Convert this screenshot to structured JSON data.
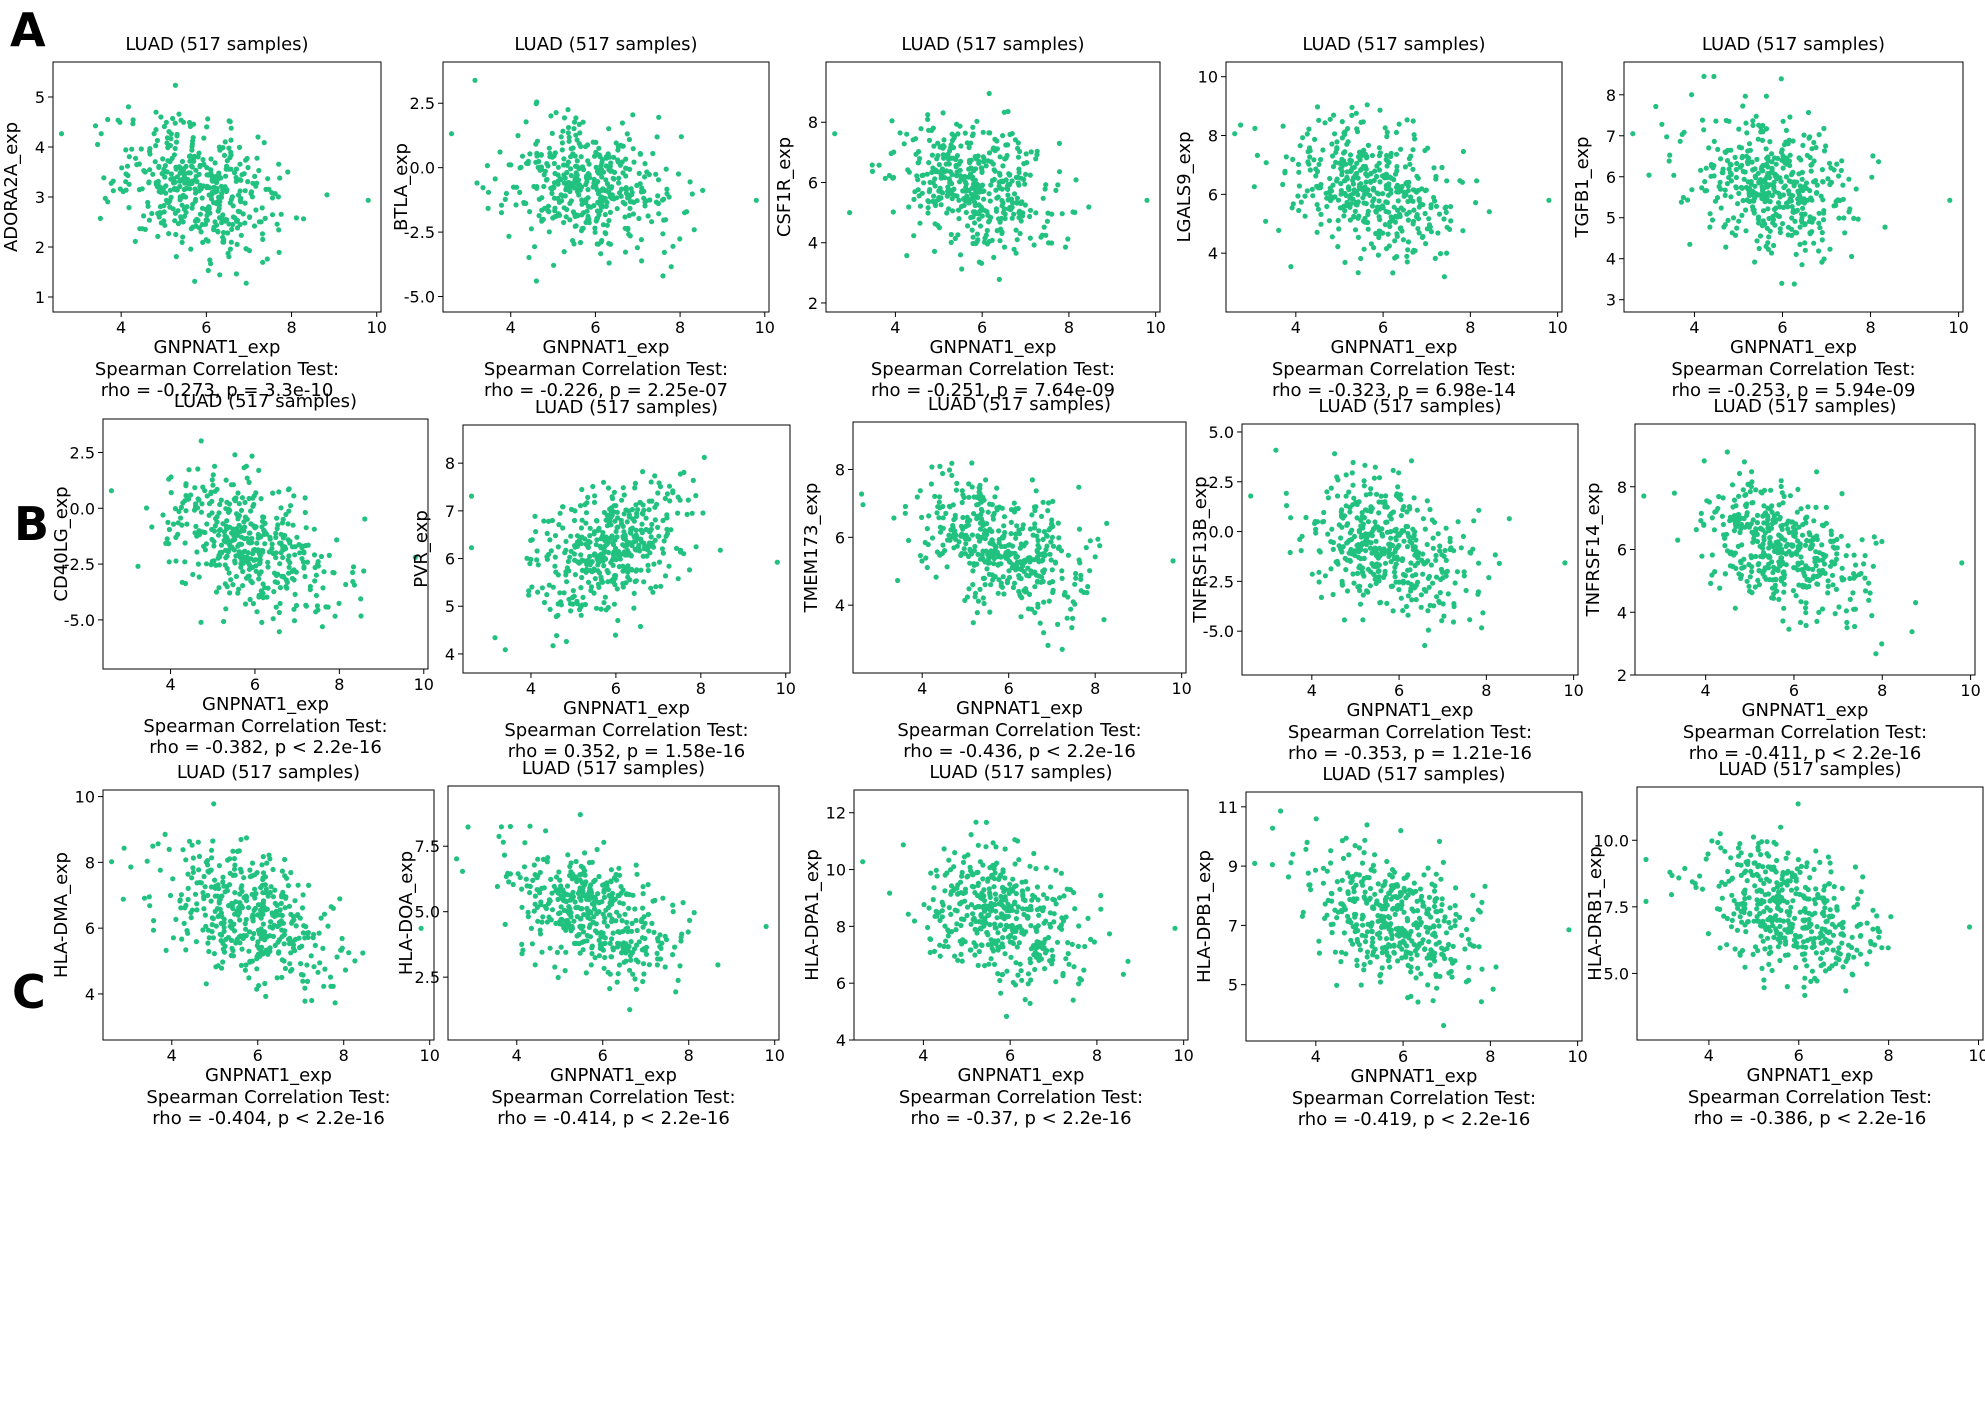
{
  "panel_labels": [
    "A",
    "B",
    "C"
  ],
  "colors": {
    "point": "#21c17f",
    "axis": "#000000"
  },
  "chart_data": [
    {
      "type": "scatter",
      "panel": "A",
      "title": "LUAD (517 samples)",
      "xlabel": "GNPNAT1_exp",
      "ylabel": "ADORA2A_exp",
      "xlim": [
        2.4,
        10.1
      ],
      "ylim": [
        0.7,
        5.7
      ],
      "xticks": [
        "4",
        "6",
        "8",
        "10"
      ],
      "yticks": [
        "1",
        "2",
        "3",
        "4",
        "5"
      ],
      "stat_title": "Spearman Correlation Test:",
      "stat": "rho = -0.273, p = 3.3e-10",
      "rho": -0.273,
      "n": 517
    },
    {
      "type": "scatter",
      "panel": "A",
      "title": "LUAD (517 samples)",
      "xlabel": "GNPNAT1_exp",
      "ylabel": "BTLA_exp",
      "xlim": [
        2.4,
        10.1
      ],
      "ylim": [
        -5.6,
        4.1
      ],
      "xticks": [
        "4",
        "6",
        "8",
        "10"
      ],
      "yticks": [
        "2.5",
        "0.0",
        "-2.5",
        "-5.0"
      ],
      "stat_title": "Spearman Correlation Test:",
      "stat": "rho = -0.226, p = 2.25e-07",
      "rho": -0.226,
      "n": 517
    },
    {
      "type": "scatter",
      "panel": "A",
      "title": "LUAD (517 samples)",
      "xlabel": "GNPNAT1_exp",
      "ylabel": "CSF1R_exp",
      "xlim": [
        2.4,
        10.1
      ],
      "ylim": [
        1.7,
        10.0
      ],
      "xticks": [
        "4",
        "6",
        "8",
        "10"
      ],
      "yticks": [
        "2",
        "4",
        "6",
        "8"
      ],
      "stat_title": "Spearman Correlation Test:",
      "stat": "rho = -0.251, p = 7.64e-09",
      "rho": -0.251,
      "n": 517
    },
    {
      "type": "scatter",
      "panel": "A",
      "title": "LUAD (517 samples)",
      "xlabel": "GNPNAT1_exp",
      "ylabel": "LGALS9_exp",
      "xlim": [
        2.4,
        10.1
      ],
      "ylim": [
        2.0,
        10.5
      ],
      "xticks": [
        "4",
        "6",
        "8",
        "10"
      ],
      "yticks": [
        "4",
        "6",
        "8",
        "10"
      ],
      "stat_title": "Spearman Correlation Test:",
      "stat": "rho = -0.323, p = 6.98e-14",
      "rho": -0.323,
      "n": 517
    },
    {
      "type": "scatter",
      "panel": "A",
      "title": "LUAD (517 samples)",
      "xlabel": "GNPNAT1_exp",
      "ylabel": "TGFB1_exp",
      "xlim": [
        2.4,
        10.1
      ],
      "ylim": [
        2.7,
        8.8
      ],
      "xticks": [
        "4",
        "6",
        "8",
        "10"
      ],
      "yticks": [
        "3",
        "4",
        "5",
        "6",
        "7",
        "8"
      ],
      "stat_title": "Spearman Correlation Test:",
      "stat": "rho = -0.253, p = 5.94e-09",
      "rho": -0.253,
      "n": 517
    },
    {
      "type": "scatter",
      "panel": "B",
      "title": "LUAD (517 samples)",
      "xlabel": "GNPNAT1_exp",
      "ylabel": "CD40LG_exp",
      "xlim": [
        2.4,
        10.1
      ],
      "ylim": [
        -7.2,
        4.0
      ],
      "xticks": [
        "4",
        "6",
        "8",
        "10"
      ],
      "yticks": [
        "2.5",
        "0.0",
        "-2.5",
        "-5.0"
      ],
      "stat_title": "Spearman Correlation Test:",
      "stat": "rho = -0.382, p < 2.2e-16",
      "rho": -0.382,
      "n": 517
    },
    {
      "type": "scatter",
      "panel": "B",
      "title": "LUAD (517 samples)",
      "xlabel": "GNPNAT1_exp",
      "ylabel": "PVR_exp",
      "xlim": [
        2.4,
        10.1
      ],
      "ylim": [
        3.6,
        8.8
      ],
      "xticks": [
        "4",
        "6",
        "8",
        "10"
      ],
      "yticks": [
        "4",
        "5",
        "6",
        "7",
        "8"
      ],
      "stat_title": "Spearman Correlation Test:",
      "stat": "rho = 0.352, p = 1.58e-16",
      "rho": 0.352,
      "n": 517
    },
    {
      "type": "scatter",
      "panel": "B",
      "title": "LUAD (517 samples)",
      "xlabel": "GNPNAT1_exp",
      "ylabel": "TMEM173_exp",
      "xlim": [
        2.4,
        10.1
      ],
      "ylim": [
        2.0,
        9.4
      ],
      "xticks": [
        "4",
        "6",
        "8",
        "10"
      ],
      "yticks": [
        "4",
        "6",
        "8"
      ],
      "stat_title": "Spearman Correlation Test:",
      "stat": "rho = -0.436, p < 2.2e-16",
      "rho": -0.436,
      "n": 517
    },
    {
      "type": "scatter",
      "panel": "B",
      "title": "LUAD (517 samples)",
      "xlabel": "GNPNAT1_exp",
      "ylabel": "TNFRSF13B_exp",
      "xlim": [
        2.4,
        10.1
      ],
      "ylim": [
        -7.2,
        5.4
      ],
      "xticks": [
        "4",
        "6",
        "8",
        "10"
      ],
      "yticks": [
        "5.0",
        "2.5",
        "0.0",
        "-2.5",
        "-5.0"
      ],
      "stat_title": "Spearman Correlation Test:",
      "stat": "rho = -0.353, p = 1.21e-16",
      "rho": -0.353,
      "n": 517
    },
    {
      "type": "scatter",
      "panel": "B",
      "title": "LUAD (517 samples)",
      "xlabel": "GNPNAT1_exp",
      "ylabel": "TNFRSF14_exp",
      "xlim": [
        2.4,
        10.1
      ],
      "ylim": [
        2.0,
        10.0
      ],
      "xticks": [
        "4",
        "6",
        "8",
        "10"
      ],
      "yticks": [
        "2",
        "4",
        "6",
        "8"
      ],
      "stat_title": "Spearman Correlation Test:",
      "stat": "rho = -0.411, p < 2.2e-16",
      "rho": -0.411,
      "n": 517
    },
    {
      "type": "scatter",
      "panel": "C",
      "title": "LUAD (517 samples)",
      "xlabel": "GNPNAT1_exp",
      "ylabel": "HLA-DMA_exp",
      "xlim": [
        2.4,
        10.1
      ],
      "ylim": [
        2.6,
        10.2
      ],
      "xticks": [
        "4",
        "6",
        "8",
        "10"
      ],
      "yticks": [
        "4",
        "6",
        "8",
        "10"
      ],
      "stat_title": "Spearman Correlation Test:",
      "stat": "rho = -0.404, p < 2.2e-16",
      "rho": -0.404,
      "n": 517
    },
    {
      "type": "scatter",
      "panel": "C",
      "title": "LUAD (517 samples)",
      "xlabel": "GNPNAT1_exp",
      "ylabel": "HLA-DOA_exp",
      "xlim": [
        2.4,
        10.1
      ],
      "ylim": [
        0.1,
        9.8
      ],
      "xticks": [
        "4",
        "6",
        "8",
        "10"
      ],
      "yticks": [
        "7.5",
        "5.0",
        "2.5"
      ],
      "stat_title": "Spearman Correlation Test:",
      "stat": "rho = -0.414, p < 2.2e-16",
      "rho": -0.414,
      "n": 517
    },
    {
      "type": "scatter",
      "panel": "C",
      "title": "LUAD (517 samples)",
      "xlabel": "GNPNAT1_exp",
      "ylabel": "HLA-DPA1_exp",
      "xlim": [
        2.4,
        10.1
      ],
      "ylim": [
        4.0,
        12.8
      ],
      "xticks": [
        "4",
        "6",
        "8",
        "10"
      ],
      "yticks": [
        "4",
        "6",
        "8",
        "10",
        "12"
      ],
      "stat_title": "Spearman Correlation Test:",
      "stat": "rho = -0.37, p < 2.2e-16",
      "rho": -0.37,
      "n": 517
    },
    {
      "type": "scatter",
      "panel": "C",
      "title": "LUAD (517 samples)",
      "xlabel": "GNPNAT1_exp",
      "ylabel": "HLA-DPB1_exp",
      "xlim": [
        2.4,
        10.1
      ],
      "ylim": [
        3.1,
        11.5
      ],
      "xticks": [
        "4",
        "6",
        "8",
        "10"
      ],
      "yticks": [
        "5",
        "7",
        "9",
        "11"
      ],
      "stat_title": "Spearman Correlation Test:",
      "stat": "rho = -0.419, p < 2.2e-16",
      "rho": -0.419,
      "n": 517
    },
    {
      "type": "scatter",
      "panel": "C",
      "title": "LUAD (517 samples)",
      "xlabel": "GNPNAT1_exp",
      "ylabel": "HLA-DRB1_exp",
      "xlim": [
        2.4,
        10.1
      ],
      "ylim": [
        2.5,
        12.0
      ],
      "xticks": [
        "4",
        "6",
        "8",
        "10"
      ],
      "yticks": [
        "5.0",
        "7.5",
        "10.0"
      ],
      "stat_title": "Spearman Correlation Test:",
      "stat": "rho = -0.386, p < 2.2e-16",
      "rho": -0.386,
      "n": 517
    }
  ]
}
